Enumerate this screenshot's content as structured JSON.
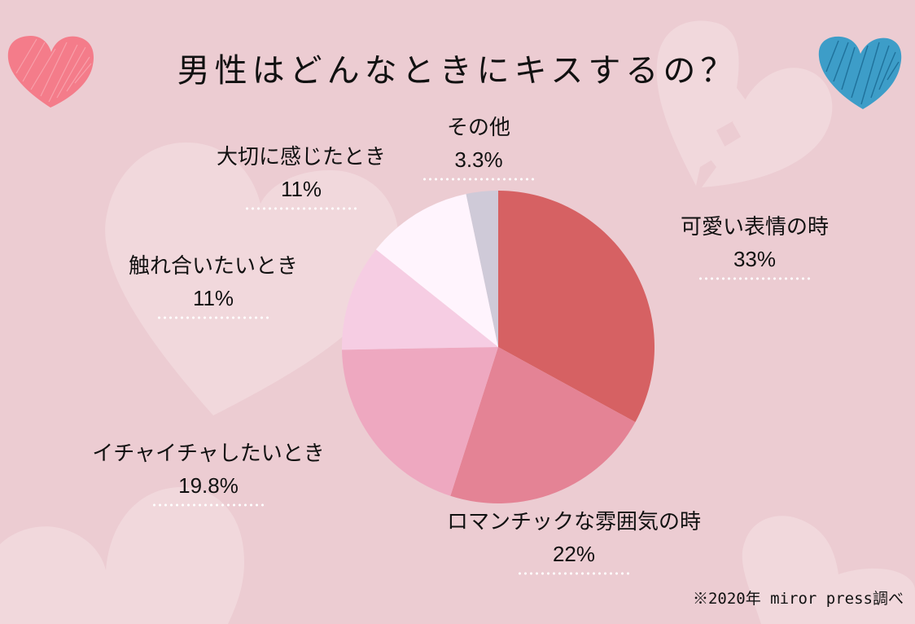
{
  "title": "男性はどんなときにキスするの？",
  "source_note": "※2020年 miror press調べ",
  "decorations": {
    "left_heart": {
      "icon": "scribble-heart-icon",
      "color": "#f47c8a"
    },
    "right_heart": {
      "icon": "scribble-heart-icon",
      "color": "#2f8fb8"
    },
    "background_hearts": [
      "heart-icon",
      "broken-heart-icon",
      "heart-icon",
      "heart-icon"
    ]
  },
  "labels": {
    "cute_face": {
      "name": "可愛い表情の時",
      "value": "33%"
    },
    "romantic": {
      "name": "ロマンチックな雰囲気の時",
      "value": "22%"
    },
    "flirt": {
      "name": "イチャイチャしたいとき",
      "value": "19.8%"
    },
    "touch": {
      "name": "触れ合いたいとき",
      "value": "11%"
    },
    "precious": {
      "name": "大切に感じたとき",
      "value": "11%"
    },
    "other": {
      "name": "その他",
      "value": "3.3%"
    }
  },
  "chart_data": {
    "type": "pie",
    "title": "男性はどんなときにキスするの？",
    "categories": [
      "可愛い表情の時",
      "ロマンチックな雰囲気の時",
      "イチャイチャしたいとき",
      "触れ合いたいとき",
      "大切に感じたとき",
      "その他"
    ],
    "values": [
      33,
      22,
      19.8,
      11,
      11,
      3.3
    ],
    "value_labels": [
      "33%",
      "22%",
      "19.8%",
      "11%",
      "11%",
      "3.3%"
    ],
    "colors": [
      "#d66163",
      "#e48395",
      "#eea8c0",
      "#f6cde3",
      "#fff4fd",
      "#cfcad8"
    ],
    "start_angle": "12 o'clock, clockwise",
    "legend": "none (labels placed around pie)",
    "source": "※2020年 miror press調べ"
  }
}
